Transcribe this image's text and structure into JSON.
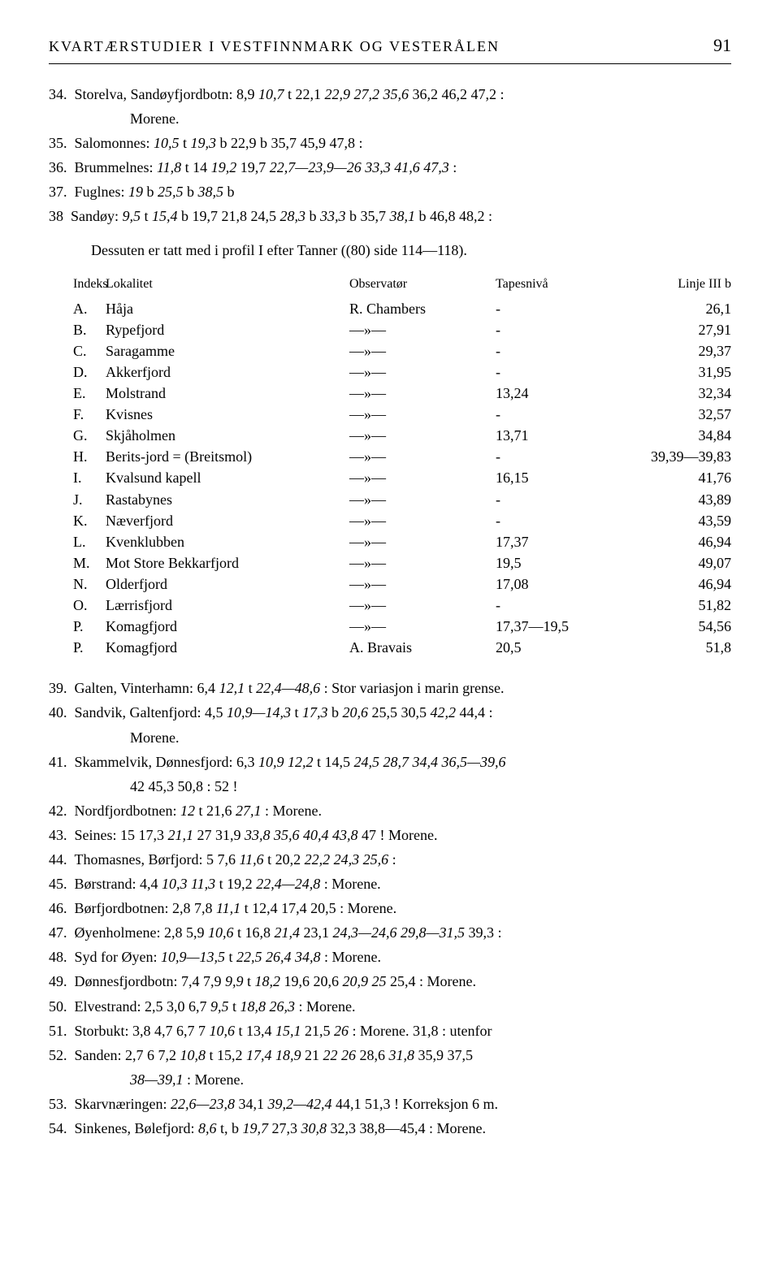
{
  "header": {
    "title": "KVARTÆRSTUDIER I VESTFINNMARK OG VESTERÅLEN",
    "page": "91"
  },
  "entries_top": [
    {
      "n": "34.",
      "text": "Storelva, Sandøyfjordbotn: 8,9  <i>10,7</i> t  22,1  <i>22,9  27,2  35,6</i>  36,2  46,2  47,2 :",
      "sub": "Morene."
    },
    {
      "n": "35.",
      "text": "Salomonnes: <i>10,5</i> t  <i>19,3</i> b  22,9 b  35,7  45,9  47,8 :"
    },
    {
      "n": "36.",
      "text": "Brummelnes: <i>11,8</i> t  14  <i>19,2</i>  19,7  <i>22,7—23,9—26  33,3  41,6  47,3</i> :"
    },
    {
      "n": "37.",
      "text": "Fuglnes: <i>19</i> b  <i>25,5</i> b  <i>38,5</i> b"
    },
    {
      "n": "38",
      "text": "Sandøy: <i>9,5</i> t  <i>15,4</i> b  19,7  21,8  24,5  <i>28,3</i> b  <i>33,3</i> b  35,7  <i>38,1</i> b  46,8  48,2 :"
    }
  ],
  "intro_para": "Dessuten er tatt med i profil I efter Tanner ((80) side 114—118).",
  "table": {
    "headers": {
      "idx": "Indeks",
      "loc": "Lokalitet",
      "obs": "Observatør",
      "tapes": "Tapesnivå",
      "linje": "Linje III b"
    },
    "rows": [
      {
        "idx": "A.",
        "loc": "Håja",
        "obs": "R. Chambers",
        "tapes": "-",
        "linje": "26,1"
      },
      {
        "idx": "B.",
        "loc": "Rypefjord",
        "obs": "—»—",
        "tapes": "-",
        "linje": "27,91"
      },
      {
        "idx": "C.",
        "loc": "Saragamme",
        "obs": "—»—",
        "tapes": "-",
        "linje": "29,37"
      },
      {
        "idx": "D.",
        "loc": "Akkerfjord",
        "obs": "—»—",
        "tapes": "-",
        "linje": "31,95"
      },
      {
        "idx": "E.",
        "loc": "Molstrand",
        "obs": "—»—",
        "tapes": "13,24",
        "linje": "32,34"
      },
      {
        "idx": "F.",
        "loc": "Kvisnes",
        "obs": "—»—",
        "tapes": "-",
        "linje": "32,57"
      },
      {
        "idx": "G.",
        "loc": "Skjåholmen",
        "obs": "—»—",
        "tapes": "13,71",
        "linje": "34,84"
      },
      {
        "idx": "H.",
        "loc": "Berits-jord = (Breitsmol)",
        "obs": "—»—",
        "tapes": "-",
        "linje": "39,39—39,83"
      },
      {
        "idx": "I.",
        "loc": "Kvalsund kapell",
        "obs": "—»—",
        "tapes": "16,15",
        "linje": "41,76"
      },
      {
        "idx": "J.",
        "loc": "Rastabynes",
        "obs": "—»—",
        "tapes": "-",
        "linje": "43,89"
      },
      {
        "idx": "K.",
        "loc": "Næverfjord",
        "obs": "—»—",
        "tapes": "-",
        "linje": "43,59"
      },
      {
        "idx": "L.",
        "loc": "Kvenklubben",
        "obs": "—»—",
        "tapes": "17,37",
        "linje": "46,94"
      },
      {
        "idx": "M.",
        "loc": "Mot Store Bekkarfjord",
        "obs": "—»—",
        "tapes": "19,5",
        "linje": "49,07"
      },
      {
        "idx": "N.",
        "loc": "Olderfjord",
        "obs": "—»—",
        "tapes": "17,08",
        "linje": "46,94"
      },
      {
        "idx": "O.",
        "loc": "Lærrisfjord",
        "obs": "—»—",
        "tapes": "-",
        "linje": "51,82"
      },
      {
        "idx": "P.",
        "loc": "Komagfjord",
        "obs": "—»—",
        "tapes": "17,37—19,5",
        "linje": "54,56"
      },
      {
        "idx": "P.",
        "loc": "Komagfjord",
        "obs": "A. Bravais",
        "tapes": "20,5",
        "linje": "51,8"
      }
    ]
  },
  "entries_bottom": [
    {
      "n": "39.",
      "text": "Galten, Vinterhamn: 6,4  <i>12,1</i> t  <i>22,4—48,6</i> :  Stor variasjon i marin grense."
    },
    {
      "n": "40.",
      "text": "Sandvik, Galtenfjord: 4,5  <i>10,9—14,3</i> t  <i>17,3</i> b  <i>20,6</i>  25,5  30,5  <i>42,2</i>  44,4 :",
      "sub": "Morene."
    },
    {
      "n": "41.",
      "text": "Skammelvik, Dønnesfjord: 6,3  <i>10,9</i>  <i>12,2</i> t  14,5  <i>24,5  28,7  34,4  36,5—39,6</i>",
      "sub": "42  45,3  50,8 :  52 !"
    },
    {
      "n": "42.",
      "text": "Nordfjordbotnen: <i>12</i> t  21,6  <i>27,1</i> :  Morene."
    },
    {
      "n": "43.",
      "text": "Seines: 15  17,3  <i>21,1</i>  27  31,9  <i>33,8  35,6  40,4  43,8</i>  47 !  Morene."
    },
    {
      "n": "44.",
      "text": "Thomasnes, Børfjord: 5  7,6  <i>11,6</i> t  20,2  <i>22,2  24,3  25,6</i> :"
    },
    {
      "n": "45.",
      "text": "Børstrand: 4,4  <i>10,3</i>  <i>11,3</i> t  19,2  <i>22,4—24,8</i> :  Morene."
    },
    {
      "n": "46.",
      "text": "Børfjordbotnen: 2,8  7,8  <i>11,1</i> t  12,4  17,4  20,5 :  Morene."
    },
    {
      "n": "47.",
      "text": "Øyenholmene: 2,8  5,9  <i>10,6</i> t  16,8  <i>21,4</i>  23,1  <i>24,3—24,6  29,8—31,5</i>  39,3 :"
    },
    {
      "n": "48.",
      "text": "Syd for Øyen: <i>10,9—13,5</i> t  <i>22,5  26,4  34,8</i> :  Morene."
    },
    {
      "n": "49.",
      "text": "Dønnesfjordbotn: 7,4  7,9  <i>9,9</i> t  <i>18,2</i>  19,6  20,6  <i>20,9  25</i>  25,4 :  Morene."
    },
    {
      "n": "50.",
      "text": "Elvestrand: 2,5  3,0  6,7  <i>9,5</i> t  <i>18,8  26,3</i> :  Morene."
    },
    {
      "n": "51.",
      "text": "Storbukt: 3,8  4,7  6,7  7  <i>10,6</i> t  13,4  <i>15,1</i>  21,5  <i>26</i> :  Morene.  31,8 :  utenfor"
    },
    {
      "n": "52.",
      "text": "Sanden: 2,7  6  7,2  <i>10,8</i> t  15,2  <i>17,4  18,9</i>  21  <i>22  26</i>  28,6  <i>31,8</i>  35,9  37,5",
      "sub": "<i>38—39,1</i> :  Morene."
    },
    {
      "n": "53.",
      "text": "Skarvnæringen: <i>22,6—23,8</i>  34,1  <i>39,2—42,4</i>  44,1  51,3 !  Korreksjon 6 m."
    },
    {
      "n": "54.",
      "text": "Sinkenes, Bølefjord: <i>8,6</i> t, b  <i>19,7</i>  27,3  <i>30,8</i>  32,3  38,8—45,4 :  Morene."
    }
  ]
}
